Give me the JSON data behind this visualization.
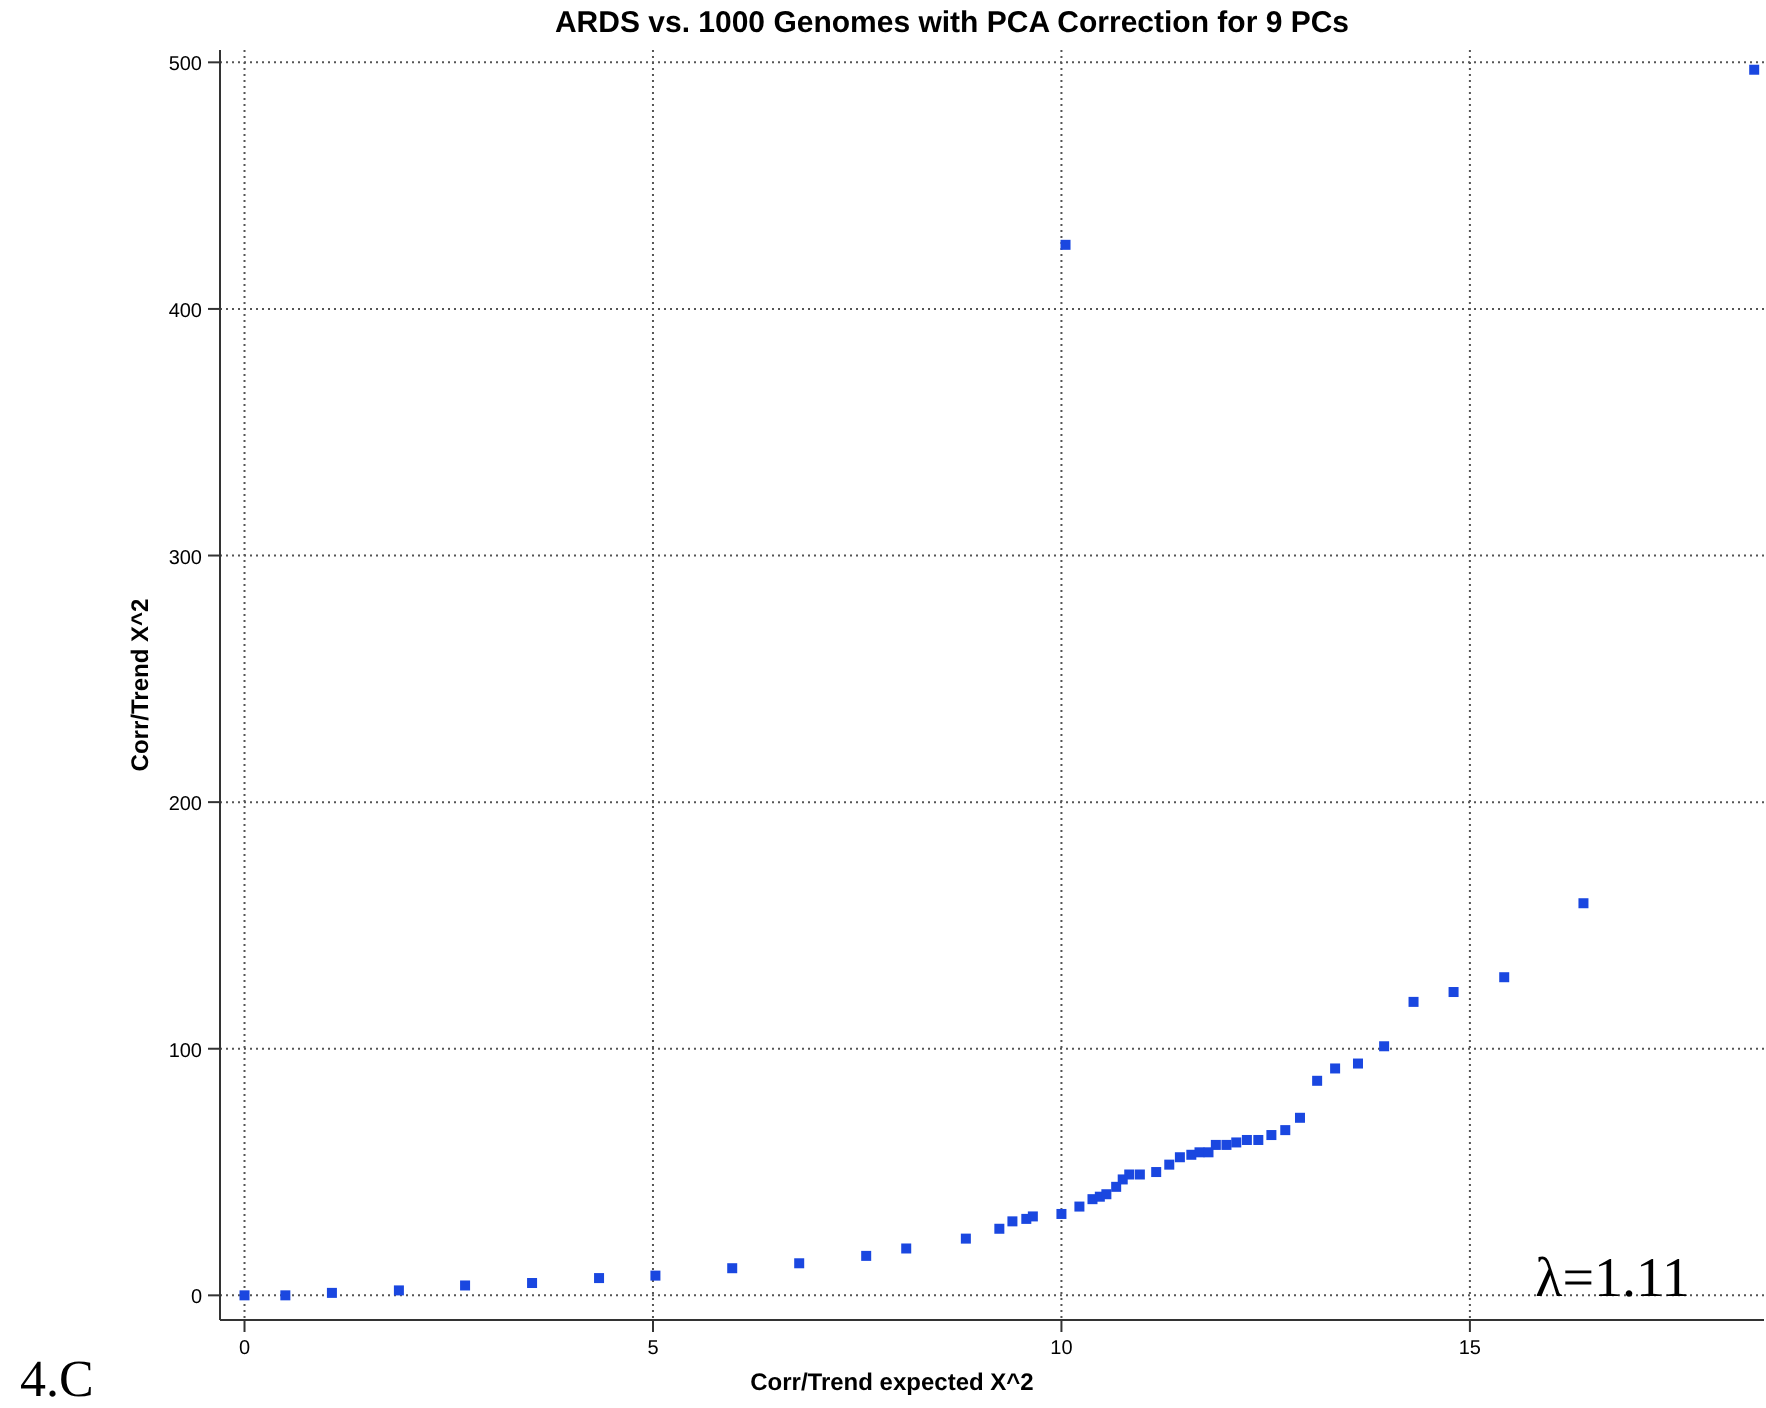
{
  "chart_data": {
    "type": "scatter",
    "title": "ARDS vs. 1000 Genomes with PCA Correction for 9 PCs",
    "xlabel": "Corr/Trend  expected X^2",
    "ylabel": "Corr/Trend  X^2",
    "marker": "square",
    "grid": true,
    "xlim": [
      -0.3,
      18.6
    ],
    "ylim": [
      -10,
      505
    ],
    "xticks": [
      0,
      5,
      10,
      15
    ],
    "yticks": [
      0,
      100,
      200,
      300,
      400,
      500
    ],
    "series": [
      {
        "color": "#1a47e0",
        "x": [
          0,
          0.5,
          1.07,
          1.89,
          2.7,
          3.52,
          4.34,
          5.03,
          5.97,
          6.79,
          7.61,
          8.1,
          8.83,
          9.24,
          9.4,
          9.57,
          9.65,
          10.0,
          10.22,
          10.38,
          10.47,
          10.55,
          10.67,
          10.75,
          10.83,
          10.96,
          11.16,
          11.32,
          11.45,
          11.59,
          11.69,
          11.8,
          11.89,
          12.02,
          12.14,
          12.27,
          12.41,
          12.57,
          12.74,
          12.92,
          13.13,
          13.35,
          13.63,
          13.95,
          14.31,
          14.8,
          15.42,
          16.39,
          10.05,
          18.48
        ],
        "values": [
          0,
          0,
          1,
          2,
          4,
          5,
          7,
          8,
          11,
          13,
          16,
          19,
          23,
          27,
          30,
          31,
          32,
          33,
          36,
          39,
          40,
          41,
          44,
          47,
          49,
          49,
          50,
          53,
          56,
          57,
          58,
          58,
          61,
          61,
          62,
          63,
          63,
          65,
          67,
          72,
          87,
          92,
          94,
          101,
          119,
          123,
          129,
          159,
          426,
          497
        ]
      }
    ],
    "annotations": [
      "λ=1.11",
      "4.C"
    ]
  }
}
